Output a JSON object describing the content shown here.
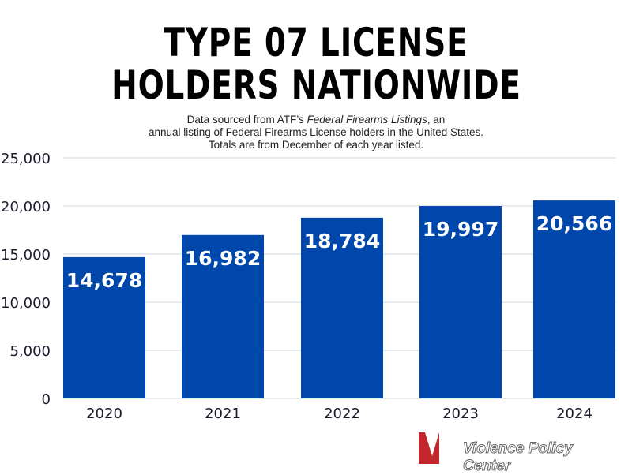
{
  "title_lines": [
    "TYPE 07 LICENSE",
    "HOLDERS NATIONWIDE"
  ],
  "subtitle": {
    "line1_pre": "Data sourced from ATF’s ",
    "line1_italic": "Federal Firearms Listings",
    "line1_post": ", an",
    "line2": "annual listing of Federal Firearms License holders in the United States.",
    "line3": "Totals are from December of each year listed."
  },
  "logo_text": "Violence Policy Center",
  "colors": {
    "bar": "#0047ab",
    "grid": "#dfe3ea",
    "text": "#1a1a2e"
  },
  "chart_data": {
    "type": "bar",
    "title": "TYPE 07 LICENSE HOLDERS NATIONWIDE",
    "xlabel": "",
    "ylabel": "",
    "categories": [
      "2020",
      "2021",
      "2022",
      "2023",
      "2024"
    ],
    "values": [
      14678,
      16982,
      18784,
      19997,
      20566
    ],
    "value_labels": [
      "14,678",
      "16,982",
      "18,784",
      "19,997",
      "20,566"
    ],
    "ylim": [
      0,
      25000
    ],
    "yticks": [
      0,
      5000,
      10000,
      15000,
      20000,
      25000
    ],
    "ytick_labels": [
      "0",
      "5,000",
      "10,000",
      "15,000",
      "20,000",
      "25,000"
    ],
    "grid": true
  }
}
